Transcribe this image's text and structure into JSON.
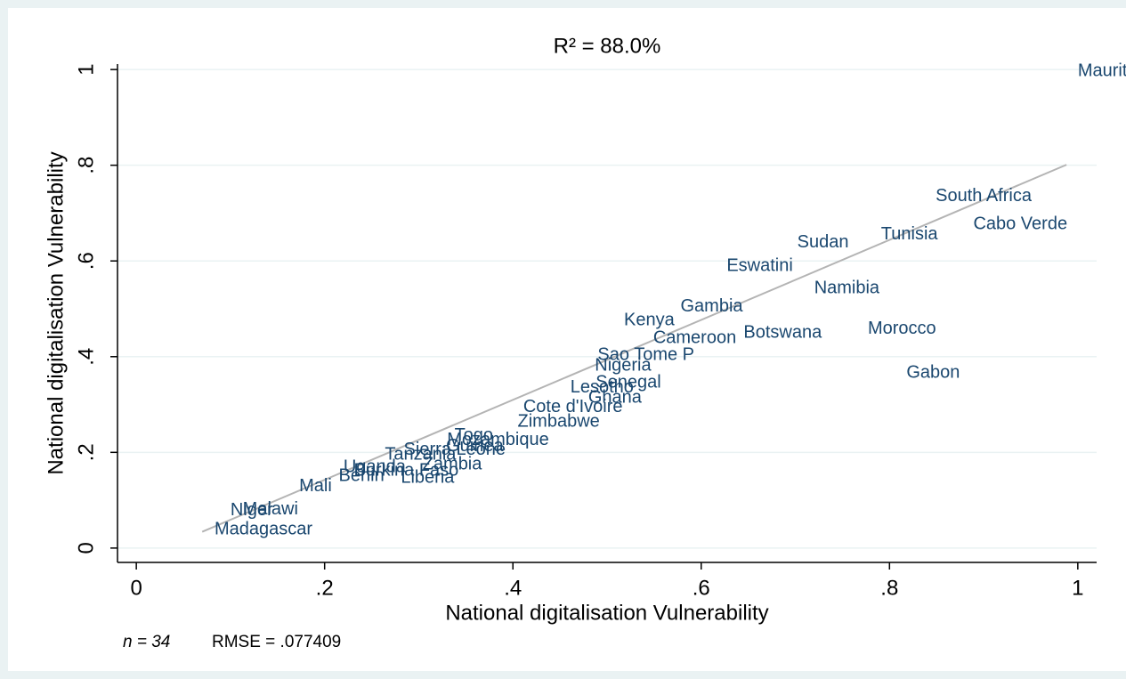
{
  "chart_data": {
    "type": "scatter",
    "title": "R² = 88.0%",
    "x_label": "National digitalisation Vulnerability",
    "y_label": "National digitalisation Vulnerability",
    "note_n": "n = 34",
    "note_rmse": "RMSE = .077409",
    "labels": [
      "Mauritius",
      "South Africa",
      "Cabo Verde",
      "Tunisia",
      "Sudan",
      "Eswatini",
      "Namibia",
      "Gambia",
      "Kenya",
      "Cameroon",
      "Botswana",
      "Morocco",
      "Gabon",
      "Sao Tome P",
      "Nigeria",
      "Senegal",
      "Lesotho",
      "Ghana",
      "Cote d'Ivoire",
      "Zimbabwe",
      "Togo",
      "Mozambique",
      "Guinea",
      "Sierra Leone",
      "Tanzania",
      "Zambia",
      "Uganda",
      "Burkina Faso",
      "Benin",
      "Liberia",
      "Mali",
      "Malawi",
      "Niger",
      "Madagascar"
    ],
    "x": [
      1.0,
      0.849,
      0.889,
      0.791,
      0.702,
      0.627,
      0.72,
      0.578,
      0.518,
      0.549,
      0.645,
      0.777,
      0.818,
      0.49,
      0.487,
      0.488,
      0.461,
      0.48,
      0.411,
      0.405,
      0.338,
      0.33,
      0.329,
      0.284,
      0.264,
      0.304,
      0.22,
      0.231,
      0.215,
      0.281,
      0.173,
      0.113,
      0.1,
      0.083
    ],
    "values": [
      0.996,
      0.735,
      0.676,
      0.655,
      0.638,
      0.589,
      0.542,
      0.504,
      0.475,
      0.438,
      0.449,
      0.458,
      0.366,
      0.403,
      0.381,
      0.345,
      0.335,
      0.314,
      0.294,
      0.263,
      0.235,
      0.225,
      0.212,
      0.205,
      0.195,
      0.174,
      0.169,
      0.161,
      0.15,
      0.146,
      0.129,
      0.08,
      0.078,
      0.038
    ],
    "color": "#1a476f",
    "fit_line": {
      "x": [
        0.07,
        0.988
      ],
      "values": [
        0.034,
        0.801
      ],
      "color": "#b4b4b4"
    },
    "xlim": [
      -0.02,
      1.02
    ],
    "ylim": [
      -0.03,
      1.03
    ],
    "xticks": [
      0,
      {
        "value": 0.2,
        "label": ".2"
      },
      {
        "value": 0.4,
        "label": ".4"
      },
      {
        "value": 0.6,
        "label": ".6"
      },
      {
        "value": 0.8,
        "label": ".8"
      },
      1
    ],
    "yticks": [
      0,
      {
        "value": 0.2,
        "label": ".2"
      },
      {
        "value": 0.4,
        "label": ".4"
      },
      {
        "value": 0.6,
        "label": ".6"
      },
      {
        "value": 0.8,
        "label": ".8"
      },
      1
    ],
    "grid": true
  }
}
